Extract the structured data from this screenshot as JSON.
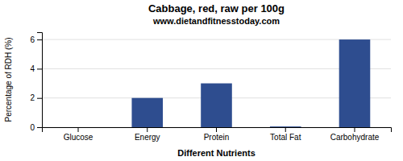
{
  "chart_data": {
    "type": "bar",
    "title": "Cabbage, red, raw per 100g",
    "subtitle": "www.dietandfitnesstoday.com",
    "xlabel": "Different Nutrients",
    "ylabel": "Percentage of RDH (%)",
    "categories": [
      "Glucose",
      "Energy",
      "Protein",
      "Total Fat",
      "Carbohydrate"
    ],
    "values": [
      0.0,
      2.0,
      3.0,
      0.05,
      6.0
    ],
    "color": "#2e4d8f",
    "ylim": [
      0,
      6.5
    ],
    "yticks": [
      0,
      2,
      4,
      6
    ],
    "grid": true
  }
}
